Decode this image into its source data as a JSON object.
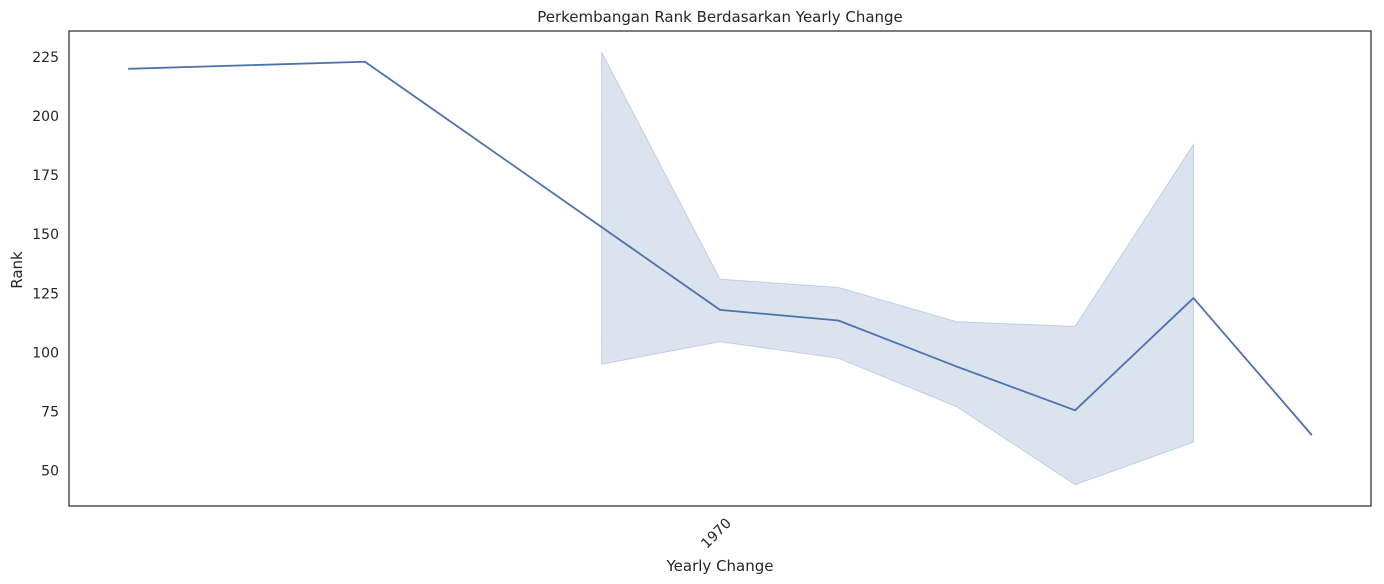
{
  "chart_data": {
    "type": "line",
    "title": "Perkembangan Rank Berdasarkan Yearly Change",
    "xlabel": "Yearly Change",
    "ylabel": "Rank",
    "x_ticks": [
      "1970"
    ],
    "y_ticks": [
      50,
      75,
      100,
      125,
      150,
      175,
      200,
      225
    ],
    "ylim": [
      35,
      236
    ],
    "grid": false,
    "legend": "none",
    "line_color": "#4c72b0",
    "band_color": "#4c72b0",
    "series": [
      {
        "x": [
          0,
          2,
          4,
          5,
          6,
          7,
          8,
          9,
          10
        ],
        "y": [
          220,
          223,
          153,
          118,
          113.5,
          94,
          75.5,
          123,
          65
        ],
        "ci_low": [
          null,
          null,
          95,
          104.5,
          97.5,
          77,
          44,
          62,
          null
        ],
        "ci_high": [
          null,
          null,
          227,
          131,
          127.5,
          113,
          111,
          188,
          null
        ]
      }
    ],
    "xlim": [
      -0.5,
      10.5
    ]
  }
}
